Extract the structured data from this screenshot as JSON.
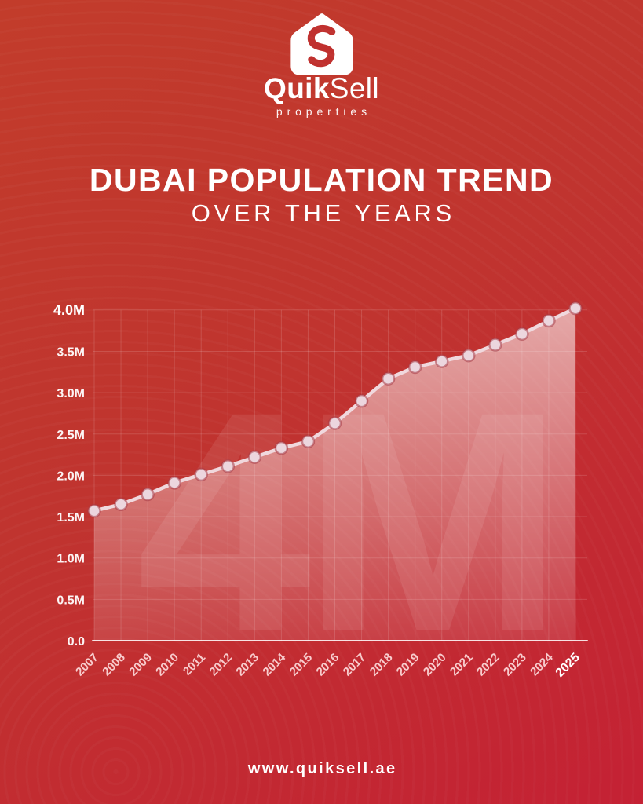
{
  "brand": {
    "name_primary": "Quik",
    "name_secondary": "Sell",
    "tagline": "properties",
    "icon": "house-with-s-monogram"
  },
  "title": {
    "line1": "DUBAI POPULATION TREND",
    "line2": "OVER THE YEARS"
  },
  "footer": {
    "url": "www.quiksell.ae"
  },
  "chart_data": {
    "type": "area",
    "title": "Dubai population by year (millions)",
    "x": [
      "2007",
      "2008",
      "2009",
      "2010",
      "2011",
      "2012",
      "2013",
      "2014",
      "2015",
      "2016",
      "2017",
      "2018",
      "2019",
      "2020",
      "2021",
      "2022",
      "2023",
      "2024",
      "2025"
    ],
    "values": [
      1.57,
      1.65,
      1.77,
      1.91,
      2.01,
      2.11,
      2.22,
      2.33,
      2.41,
      2.63,
      2.9,
      3.17,
      3.31,
      3.38,
      3.45,
      3.58,
      3.71,
      3.87,
      4.02
    ],
    "y_ticks": [
      "0.0",
      "0.5M",
      "1.0M",
      "1.5M",
      "2.0M",
      "2.5M",
      "3.0M",
      "3.5M",
      "4.0M"
    ],
    "y_tick_values": [
      0,
      0.5,
      1.0,
      1.5,
      2.0,
      2.5,
      3.0,
      3.5,
      4.0
    ],
    "ylim": [
      0,
      4.2
    ],
    "grid": "on",
    "legend": "none",
    "watermark": "4M",
    "highlight_x": "2025",
    "highlight_y_tick": "4.0M",
    "colors": {
      "background_top": "#c23c2b",
      "background_bottom": "#c42134",
      "line": "#f0d8dd",
      "marker_fill": "#ecd6de",
      "marker_stroke": "#a53a46",
      "area_fill_top": "rgba(255,255,255,0.58)",
      "area_fill_bottom": "rgba(255,255,255,0.10)",
      "text": "#ffffff"
    }
  }
}
